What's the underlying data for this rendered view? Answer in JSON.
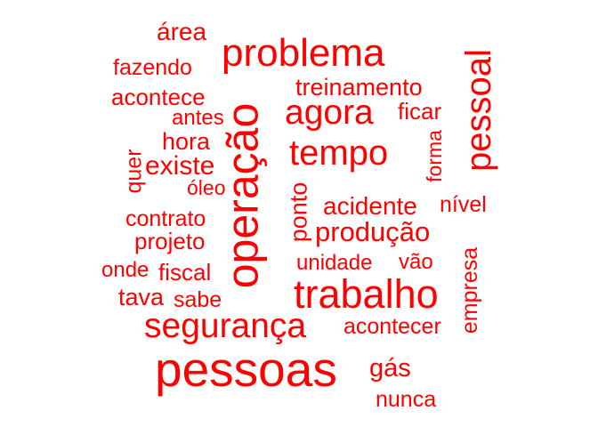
{
  "color": "#ff0000",
  "words": {
    "pessoas": "pessoas",
    "operacao": "operação",
    "trabalho": "trabalho",
    "problema": "problema",
    "seguranca": "segurança",
    "pessoal": "pessoal",
    "tempo": "tempo",
    "agora": "agora",
    "producao": "produção",
    "acidente": "acidente",
    "existe": "existe",
    "treinamento": "treinamento",
    "empresa": "empresa",
    "ponto": "ponto",
    "acontecer": "acontecer",
    "area": "área",
    "projeto": "projeto",
    "acontece": "acontece",
    "fazendo": "fazendo",
    "contrato": "contrato",
    "unidade": "unidade",
    "gas": "gás",
    "hora": "hora",
    "fiscal": "fiscal",
    "tava": "tava",
    "sabe": "sabe",
    "ficar": "ficar",
    "nivel": "nível",
    "forma": "forma",
    "nunca": "nunca",
    "quer": "quer",
    "antes": "antes",
    "oleo": "óleo",
    "onde": "onde",
    "vao": "vão"
  }
}
